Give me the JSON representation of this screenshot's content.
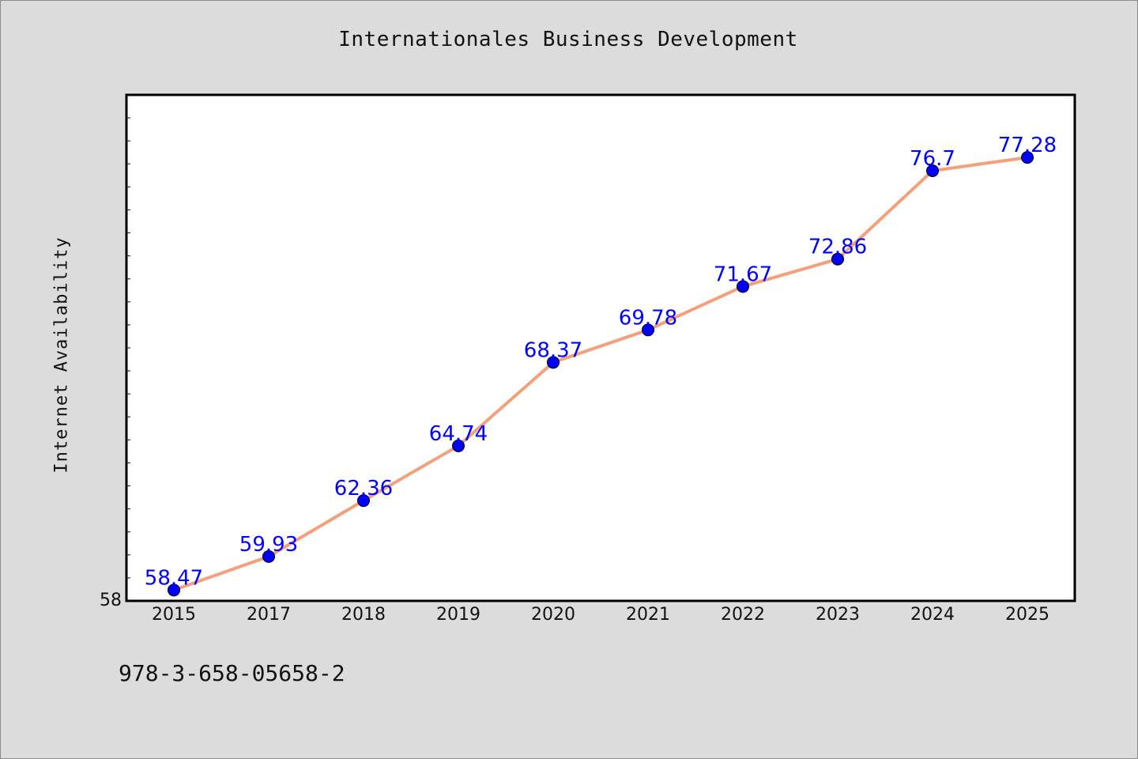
{
  "title": "Internationales Business Development",
  "footer": {
    "code": "978-3-658-05658-2"
  },
  "colors": {
    "background": "#dcdcdc",
    "plot_background": "#ffffff",
    "line": "#f4a07a",
    "marker": "#0000ff",
    "data_label": "#0000ff"
  },
  "chart_data": {
    "type": "line",
    "title": "Internationales Business Development",
    "xlabel": "",
    "ylabel": "Internet Availability",
    "categories": [
      "2015",
      "2017",
      "2018",
      "2019",
      "2020",
      "2021",
      "2022",
      "2023",
      "2024",
      "2025"
    ],
    "series": [
      {
        "values": [
          58.47,
          59.93,
          62.36,
          64.74,
          68.37,
          69.78,
          71.67,
          72.86,
          76.7,
          77.28
        ]
      }
    ],
    "data_labels": [
      "58.47",
      "59.93",
      "62.36",
      "64.74",
      "68.37",
      "69.78",
      "71.67",
      "72.86",
      "76.7",
      "77.28"
    ],
    "ylim": [
      58,
      80
    ],
    "y_tick_labels": [
      "58"
    ],
    "grid": false,
    "legend": "none"
  }
}
